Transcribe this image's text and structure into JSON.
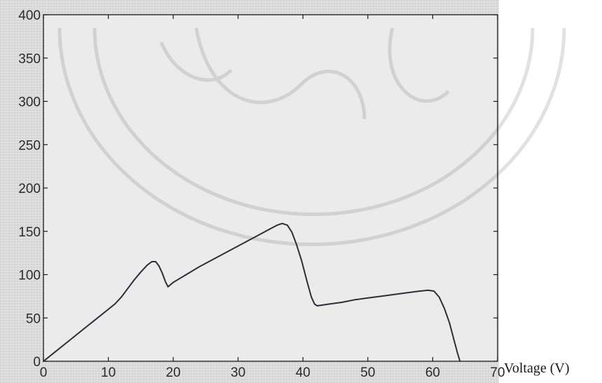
{
  "chart_data": {
    "type": "line",
    "title": "",
    "xlabel": "Voltage (V)",
    "ylabel": "",
    "xlim": [
      0,
      70
    ],
    "ylim": [
      0,
      400
    ],
    "xticks": [
      "0",
      "10",
      "20",
      "30",
      "40",
      "50",
      "60",
      "70"
    ],
    "yticks": [
      "0",
      "50",
      "100",
      "150",
      "200",
      "250",
      "300",
      "350",
      "400"
    ],
    "grid": false,
    "legend": "none",
    "series": [
      {
        "x": [
          0,
          2,
          4,
          6,
          8,
          10,
          11,
          12,
          13,
          14,
          15,
          16,
          16.7,
          17.3,
          17.8,
          18.3,
          18.8,
          19.2,
          20,
          22,
          24,
          26,
          28,
          30,
          32,
          34,
          35,
          36,
          36.8,
          37.6,
          38.3,
          39,
          39.8,
          40.6,
          41.3,
          41.8,
          42.2,
          44,
          46,
          48,
          50,
          52,
          54,
          56,
          58,
          59.3,
          60.2,
          61,
          61.8,
          62.6,
          63.3,
          63.8,
          64.2
        ],
        "y": [
          0,
          12,
          24,
          36,
          48,
          60,
          66,
          74,
          84,
          94,
          103,
          111,
          115,
          115,
          110,
          102,
          92,
          86,
          91,
          100,
          109,
          117,
          125,
          133,
          141,
          149,
          153,
          157,
          159,
          157,
          149,
          135,
          116,
          93,
          74,
          66,
          64,
          66,
          68,
          71,
          73,
          75,
          77,
          79,
          81,
          82,
          81,
          74,
          61,
          44,
          24,
          10,
          0
        ]
      }
    ],
    "colors": {
      "plot_background": "#e6e6e6",
      "figure_background": "#d7d7d7",
      "line": "#2c2f3a",
      "axes": "#1a1a1a"
    }
  }
}
